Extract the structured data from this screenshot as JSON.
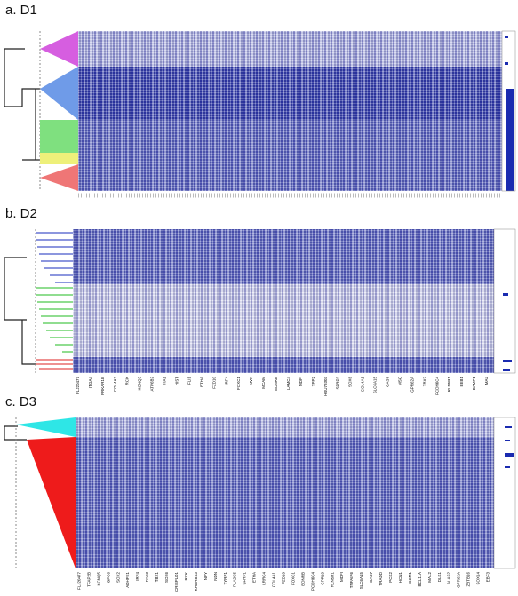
{
  "panels": [
    {
      "title": "a. D1"
    },
    {
      "title": "b. D2",
      "genes": [
        "FLJ20477",
        "ITGA4",
        "PRKAR1B",
        "COL4A2",
        "RCK",
        "KCNQ5",
        "ATP6B2",
        "TIA1",
        "HIST",
        "FLI1",
        "ETHA",
        "FZD10",
        "IRF4",
        "FOXC1",
        "MVK",
        "MCAM",
        "EDNRB",
        "LAMC4",
        "MDFI",
        "TPP2",
        "HSU79303",
        "SFRP3",
        "SOX6",
        "COL4A1",
        "SLC6A15",
        "GAS7",
        "MSC",
        "GPR62A",
        "TBX2",
        "PCDH6C4",
        "RLN5R1",
        "EEB1",
        "BAMP1",
        "MAL"
      ]
    },
    {
      "title": "c. D3",
      "genes": [
        "FLJ20477",
        "TFAP2B",
        "KCNQ5",
        "GPC6",
        "SOX2",
        "ADHFE1",
        "IRF4",
        "PAX3",
        "TBX1",
        "SOX6",
        "CRISPLD1",
        "RCK",
        "KHDRBS3",
        "NPY",
        "NDN",
        "TYRP1",
        "PLA2G5",
        "SFRP1",
        "ETHA",
        "LRRC4",
        "COL4A1",
        "FZD10",
        "FOXC1",
        "EDNRB",
        "PCDH6C4",
        "GPR19",
        "RLN5R1",
        "MDFI",
        "TNFAIP6",
        "SLC6A15",
        "GAS7",
        "TRADD",
        "PCK2",
        "HCN1",
        "GCM1",
        "BCL11A",
        "MAL2",
        "DLK1",
        "ALAS2",
        "GPR62A",
        "ZBTB16",
        "SOX14",
        "EBF3"
      ]
    }
  ]
}
